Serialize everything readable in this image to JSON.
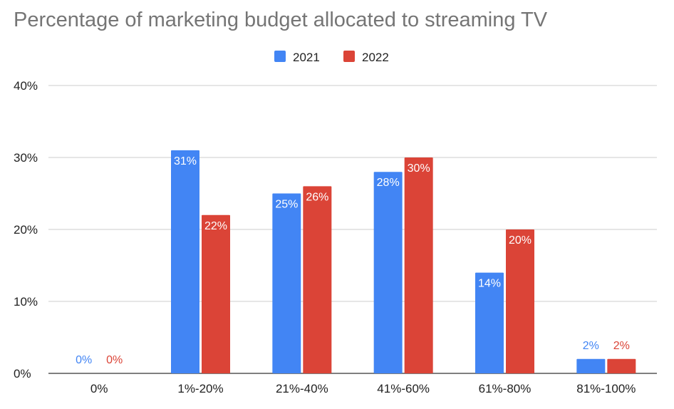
{
  "chart_data": {
    "type": "bar",
    "title": "Percentage of marketing budget allocated to streaming TV",
    "xlabel": "",
    "ylabel": "",
    "categories": [
      "0%",
      "1%-20%",
      "21%-40%",
      "41%-60%",
      "61%-80%",
      "81%-100%"
    ],
    "series": [
      {
        "name": "2021",
        "color": "#4285f4",
        "values": [
          0,
          31,
          25,
          28,
          14,
          2
        ],
        "labels": [
          "0%",
          "31%",
          "25%",
          "28%",
          "14%",
          "2%"
        ]
      },
      {
        "name": "2022",
        "color": "#db4437",
        "values": [
          0,
          22,
          26,
          30,
          20,
          2
        ],
        "labels": [
          "0%",
          "22%",
          "26%",
          "30%",
          "20%",
          "2%"
        ]
      }
    ],
    "ylim": [
      0,
      40
    ],
    "yticks": [
      0,
      10,
      20,
      30,
      40
    ],
    "ytick_labels": [
      "0%",
      "10%",
      "20%",
      "30%",
      "40%"
    ],
    "grid": true,
    "legend_position": "top"
  }
}
